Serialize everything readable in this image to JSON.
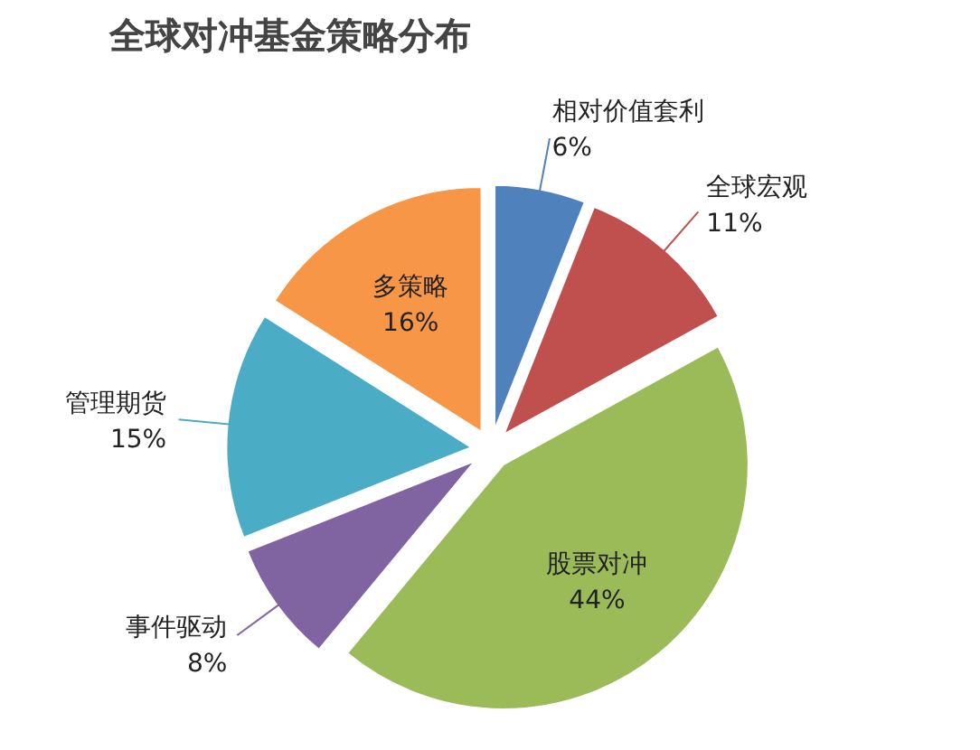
{
  "chart_data": {
    "type": "pie",
    "title": "全球对冲基金策略分布",
    "categories": [
      "相对价值套利",
      "全球宏观",
      "股票对冲",
      "事件驱动",
      "管理期货",
      "多策略"
    ],
    "values": [
      6,
      11,
      44,
      8,
      15,
      16
    ],
    "value_labels": [
      "6%",
      "11%",
      "44%",
      "8%",
      "15%",
      "16%"
    ],
    "colors": [
      "#4f81bd",
      "#c0504d",
      "#9bbb59",
      "#8064a2",
      "#4bacc6",
      "#f79646"
    ]
  }
}
